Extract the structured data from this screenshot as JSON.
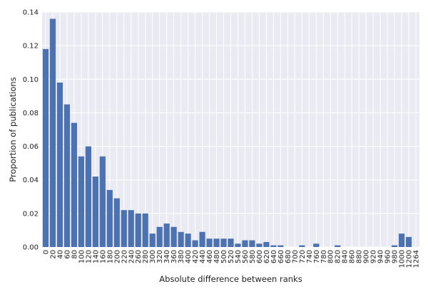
{
  "chart_data": {
    "type": "bar",
    "title": "",
    "xlabel": "Absolute difference between ranks",
    "ylabel": "Proportion of publications",
    "ylim": [
      0,
      0.14
    ],
    "yticks": [
      "0.00",
      "0.02",
      "0.04",
      "0.06",
      "0.08",
      "0.10",
      "0.12",
      "0.14"
    ],
    "grid": true,
    "legend": "none",
    "categories": [
      "0",
      "20",
      "40",
      "60",
      "80",
      "100",
      "120",
      "140",
      "160",
      "180",
      "200",
      "220",
      "240",
      "260",
      "280",
      "300",
      "320",
      "340",
      "360",
      "380",
      "400",
      "420",
      "440",
      "460",
      "480",
      "500",
      "520",
      "540",
      "560",
      "580",
      "600",
      "620",
      "640",
      "660",
      "680",
      "700",
      "720",
      "740",
      "760",
      "780",
      "800",
      "820",
      "840",
      "860",
      "880",
      "900",
      "920",
      "940",
      "960",
      "980",
      "1000",
      "1200",
      "1264"
    ],
    "values": [
      0.118,
      0.136,
      0.098,
      0.085,
      0.074,
      0.054,
      0.06,
      0.042,
      0.054,
      0.034,
      0.029,
      0.022,
      0.022,
      0.02,
      0.02,
      0.008,
      0.012,
      0.014,
      0.012,
      0.009,
      0.008,
      0.004,
      0.009,
      0.005,
      0.005,
      0.005,
      0.005,
      0.002,
      0.004,
      0.004,
      0.002,
      0.003,
      0.001,
      0.001,
      0.0,
      0.0,
      0.001,
      0.0,
      0.002,
      0.0,
      0.0,
      0.001,
      0.0,
      0.0,
      0.0,
      0.0,
      0.0,
      0.0,
      0.0,
      0.001,
      0.008,
      0.006,
      0.0
    ],
    "colors": {
      "bar": "#4c72b0",
      "plot_background": "#eaeaf2",
      "grid": "#ffffff"
    }
  }
}
